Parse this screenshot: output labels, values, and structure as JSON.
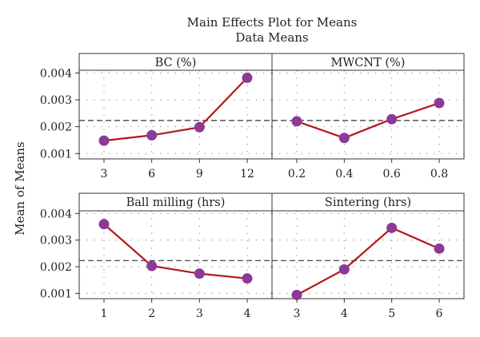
{
  "chart_data": {
    "type": "line",
    "title": "Main Effects Plot for Means",
    "subtitle": "Data Means",
    "ylabel": "Mean of Means",
    "ylim": [
      0.0008,
      0.0041
    ],
    "yticks": [
      0.001,
      0.002,
      0.003,
      0.004
    ],
    "ytick_labels": [
      "0.001",
      "0.002",
      "0.003",
      "0.004"
    ],
    "reference_mean": 0.00223,
    "grid": true,
    "colors": {
      "line": "#b5161b",
      "marker": "#8b3a96",
      "reference": "#333333"
    },
    "panels": [
      {
        "title": "BC (%)",
        "categories": [
          "3",
          "6",
          "9",
          "12"
        ],
        "values": [
          0.00148,
          0.00168,
          0.00198,
          0.00382
        ]
      },
      {
        "title": "MWCNT (%)",
        "categories": [
          "0.2",
          "0.4",
          "0.6",
          "0.8"
        ],
        "values": [
          0.0022,
          0.00158,
          0.00228,
          0.00288
        ]
      },
      {
        "title": "Ball milling (hrs)",
        "categories": [
          "1",
          "2",
          "3",
          "4"
        ],
        "values": [
          0.0036,
          0.00203,
          0.00174,
          0.00156
        ]
      },
      {
        "title": "Sintering (hrs)",
        "categories": [
          "3",
          "4",
          "5",
          "6"
        ],
        "values": [
          0.00094,
          0.0019,
          0.00346,
          0.00268
        ]
      }
    ]
  }
}
